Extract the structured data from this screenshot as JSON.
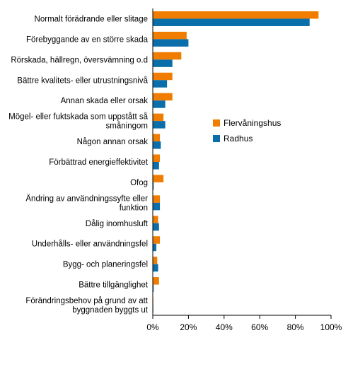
{
  "chart_data": {
    "type": "bar",
    "orientation": "horizontal",
    "categories": [
      [
        "Normalt förädrande eller slitage"
      ],
      [
        "Förebyggande av en större skada"
      ],
      [
        "Rörskada, hällregn, översvämning o.d"
      ],
      [
        "Bättre kvalitets- eller utrustningsnivå"
      ],
      [
        "Annan skada eller orsak"
      ],
      [
        "Mögel- eller fuktskada som uppstått så",
        "småningom"
      ],
      [
        "Någon annan orsak"
      ],
      [
        "Förbättrad energieffektivitet"
      ],
      [
        "Ofog"
      ],
      [
        "Ändring av användningssyfte eller",
        "funktion"
      ],
      [
        "Dålig inomhusluft"
      ],
      [
        "Underhålls- eller användningsfel"
      ],
      [
        "Bygg- och planeringsfel"
      ],
      [
        "Bättre tillgänglighet"
      ],
      [
        "Förändringsbehov på grund av att",
        "byggnaden byggts ut"
      ]
    ],
    "series": [
      {
        "name": "Flervåningshus",
        "color": "#f07d00",
        "values": [
          93,
          19,
          16,
          11,
          11,
          6,
          4,
          4,
          6,
          4,
          3,
          4,
          2.5,
          3.5,
          0.3
        ]
      },
      {
        "name": "Radhus",
        "color": "#0a6eaa",
        "values": [
          88,
          20,
          11,
          8,
          7,
          7,
          4.5,
          3.5,
          0.5,
          4,
          3.5,
          2,
          3,
          0.5,
          0.3
        ]
      }
    ],
    "x_ticks": [
      "0%",
      "20%",
      "40%",
      "60%",
      "80%",
      "100%"
    ],
    "xlim": [
      0,
      100
    ],
    "legend_position": "right",
    "grid": false
  }
}
